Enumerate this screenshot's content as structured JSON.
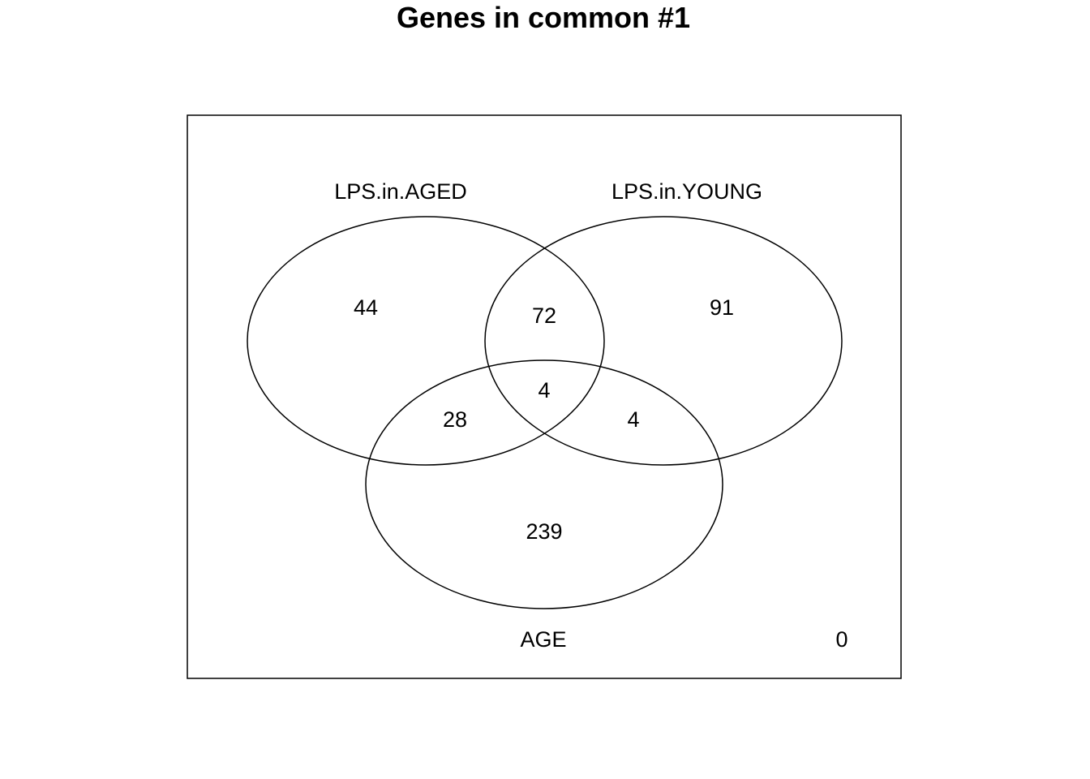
{
  "title": "Genes in common #1",
  "sets": {
    "a": "LPS.in.AGED",
    "b": "LPS.in.YOUNG",
    "c": "AGE"
  },
  "counts": {
    "a_only": "44",
    "b_only": "91",
    "c_only": "239",
    "a_b": "72",
    "a_c": "28",
    "b_c": "4",
    "a_b_c": "4",
    "outside": "0"
  },
  "colors": {
    "line": "#000000",
    "background": "#ffffff"
  }
}
